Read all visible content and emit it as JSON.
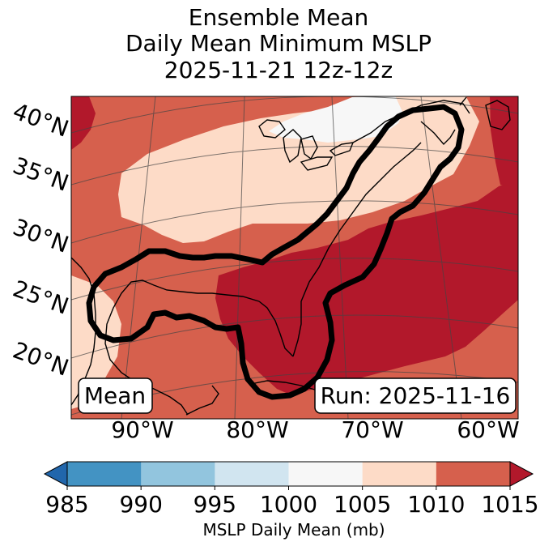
{
  "title": {
    "line1": "Ensemble Mean",
    "line2": "Daily Mean Minimum MSLP",
    "line3": "2025-11-21 12z-12z"
  },
  "map": {
    "lat_labels": [
      "40°N",
      "35°N",
      "30°N",
      "25°N",
      "20°N"
    ],
    "lon_labels": [
      "90°W",
      "80°W",
      "70°W",
      "60°W"
    ],
    "left_box": "Mean",
    "right_box": "Run: 2025-11-16"
  },
  "colorbar": {
    "label": "MSLP Daily Mean (mb)",
    "ticks": [
      "985",
      "990",
      "995",
      "1000",
      "1005",
      "1010",
      "1015"
    ],
    "colors": [
      "#2166ac",
      "#4393c3",
      "#92c5de",
      "#d1e5f0",
      "#f7f7f7",
      "#fddbc7",
      "#d6604d",
      "#b2182b"
    ]
  },
  "chart_data": {
    "type": "heatmap",
    "title": "Ensemble Mean Daily Mean Minimum MSLP 2025-11-21 12z-12z",
    "variable": "MSLP Daily Mean (mb)",
    "levels": [
      985,
      990,
      995,
      1000,
      1005,
      1010,
      1015
    ],
    "extend": "both",
    "lat_range": [
      15,
      40
    ],
    "lon_range": [
      -95,
      -60
    ],
    "features": [
      "ensemble mean MSLP field",
      "black contour outlining eastern US coast and Gulf region"
    ]
  }
}
